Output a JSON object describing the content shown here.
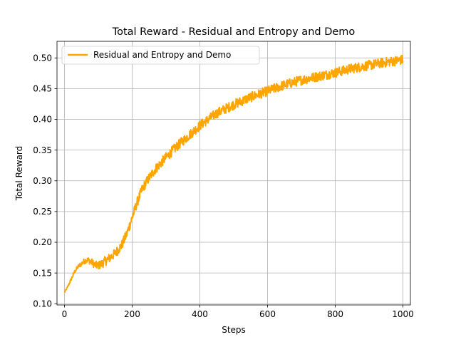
{
  "chart_data": {
    "type": "line",
    "title": "Total Reward - Residual and Entropy and Demo",
    "xlabel": "Steps",
    "ylabel": "Total Reward",
    "xlim": [
      -22,
      1022
    ],
    "ylim": [
      0.098,
      0.527
    ],
    "x_ticks": [
      0,
      200,
      400,
      600,
      800,
      1000
    ],
    "x_tick_labels": [
      "0",
      "200",
      "400",
      "600",
      "800",
      "1000"
    ],
    "y_ticks": [
      0.1,
      0.15,
      0.2,
      0.25,
      0.3,
      0.35,
      0.4,
      0.45,
      0.5
    ],
    "y_tick_labels": [
      "0.10",
      "0.15",
      "0.20",
      "0.25",
      "0.30",
      "0.35",
      "0.40",
      "0.45",
      "0.50"
    ],
    "grid": true,
    "legend_position": "upper-left",
    "series": [
      {
        "name": "Residual and Entropy and Demo",
        "color": "#ffa500",
        "noise_amplitude": 0.008,
        "points": [
          [
            0,
            0.118
          ],
          [
            10,
            0.128
          ],
          [
            20,
            0.14
          ],
          [
            30,
            0.152
          ],
          [
            40,
            0.16
          ],
          [
            50,
            0.165
          ],
          [
            60,
            0.17
          ],
          [
            70,
            0.171
          ],
          [
            80,
            0.168
          ],
          [
            90,
            0.163
          ],
          [
            100,
            0.162
          ],
          [
            110,
            0.165
          ],
          [
            130,
            0.173
          ],
          [
            150,
            0.182
          ],
          [
            170,
            0.196
          ],
          [
            185,
            0.215
          ],
          [
            200,
            0.24
          ],
          [
            215,
            0.265
          ],
          [
            230,
            0.287
          ],
          [
            250,
            0.305
          ],
          [
            270,
            0.32
          ],
          [
            300,
            0.338
          ],
          [
            330,
            0.355
          ],
          [
            360,
            0.37
          ],
          [
            400,
            0.39
          ],
          [
            450,
            0.41
          ],
          [
            500,
            0.424
          ],
          [
            550,
            0.436
          ],
          [
            600,
            0.446
          ],
          [
            650,
            0.456
          ],
          [
            700,
            0.464
          ],
          [
            750,
            0.47
          ],
          [
            800,
            0.476
          ],
          [
            850,
            0.483
          ],
          [
            900,
            0.488
          ],
          [
            950,
            0.493
          ],
          [
            1000,
            0.497
          ]
        ]
      }
    ]
  }
}
